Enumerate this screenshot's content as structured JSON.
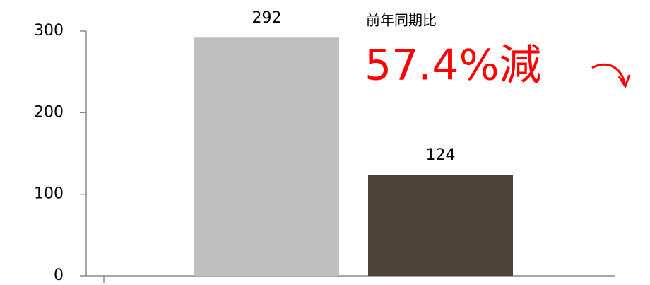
{
  "chart_data": {
    "type": "bar",
    "categories": [
      null,
      null
    ],
    "values": [
      292,
      124
    ],
    "colors": [
      "#bfbfbf",
      "#4a4336"
    ],
    "ylim": [
      0,
      300
    ],
    "yticks": [
      0,
      100,
      200,
      300
    ],
    "grid": false,
    "annotations": [
      "前年同期比",
      "57.4%減"
    ],
    "annotation_color": "#ff0000"
  }
}
